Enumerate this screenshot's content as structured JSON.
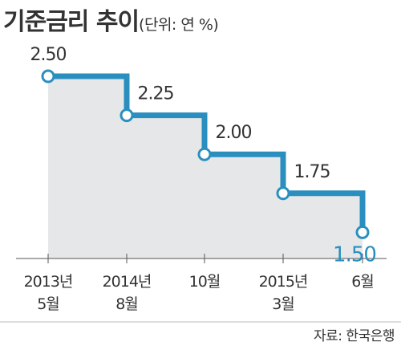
{
  "title": "기준금리 추이",
  "unit": "(단위: 연 %)",
  "source": "자료: 한국은행",
  "colors": {
    "line": "#2a8fbf",
    "area": "#e6e7e9",
    "highlight": "#2a8fbf",
    "text": "#333333",
    "axis": "#555555"
  },
  "chart_data": {
    "type": "line",
    "step": true,
    "title": "기준금리 추이",
    "categories": [
      [
        "2013년",
        "5월"
      ],
      [
        "2014년",
        "8월"
      ],
      [
        "10월"
      ],
      [
        "2015년",
        "3월"
      ],
      [
        "6월"
      ]
    ],
    "values": [
      2.5,
      2.25,
      2.0,
      1.75,
      1.5
    ],
    "labels": [
      "2.50",
      "2.25",
      "2.00",
      "1.75",
      "1.50"
    ],
    "highlight_index": 4,
    "ylim": [
      0.85,
      2.6
    ],
    "grid": false,
    "legend": "none"
  }
}
